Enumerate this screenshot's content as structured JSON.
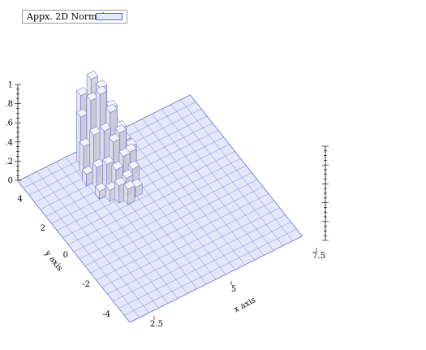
{
  "legend": {
    "label": "Appx. 2D Normal"
  },
  "chart_data": {
    "type": "histogram3d",
    "title": "",
    "xlabel": "x axis",
    "ylabel": "y axis",
    "zlabel": "",
    "x_ticks": [
      "2.5",
      "5",
      "7.5"
    ],
    "y_ticks": [
      "-4",
      "-2",
      "0",
      "2",
      "4"
    ],
    "z_ticks": [
      "0",
      ".2",
      ".4",
      ".6",
      ".8",
      "1"
    ],
    "grid": true,
    "legend_position": "top-left",
    "colors": {
      "fill": "#e4e8fb",
      "edge": "#5a66c8",
      "bar_top": "#f4f5fb",
      "bar_side": "#c9cad6"
    },
    "bars": [
      {
        "x": 4.7,
        "y": 2.2,
        "z": 0.08
      },
      {
        "x": 5.0,
        "y": 1.8,
        "z": 0.12
      },
      {
        "x": 5.3,
        "y": 1.5,
        "z": 0.18
      },
      {
        "x": 5.6,
        "y": 1.2,
        "z": 0.16
      },
      {
        "x": 4.6,
        "y": 3.2,
        "z": 0.12
      },
      {
        "x": 4.9,
        "y": 2.8,
        "z": 0.22
      },
      {
        "x": 5.2,
        "y": 2.4,
        "z": 0.28
      },
      {
        "x": 5.5,
        "y": 2.1,
        "z": 0.24
      },
      {
        "x": 5.8,
        "y": 1.7,
        "z": 0.18
      },
      {
        "x": 6.1,
        "y": 1.4,
        "z": 0.1
      },
      {
        "x": 4.8,
        "y": 3.8,
        "z": 0.3
      },
      {
        "x": 5.1,
        "y": 3.4,
        "z": 0.45
      },
      {
        "x": 5.4,
        "y": 3.0,
        "z": 0.52
      },
      {
        "x": 5.7,
        "y": 2.7,
        "z": 0.42
      },
      {
        "x": 6.0,
        "y": 2.3,
        "z": 0.3
      },
      {
        "x": 6.3,
        "y": 2.0,
        "z": 0.18
      },
      {
        "x": 5.0,
        "y": 4.4,
        "z": 0.5
      },
      {
        "x": 5.3,
        "y": 4.0,
        "z": 0.7
      },
      {
        "x": 5.6,
        "y": 3.7,
        "z": 0.78
      },
      {
        "x": 5.9,
        "y": 3.3,
        "z": 0.62
      },
      {
        "x": 6.2,
        "y": 3.0,
        "z": 0.42
      },
      {
        "x": 6.5,
        "y": 2.6,
        "z": 0.25
      },
      {
        "x": 5.3,
        "y": 4.9,
        "z": 0.62
      },
      {
        "x": 5.6,
        "y": 4.5,
        "z": 0.82
      },
      {
        "x": 5.9,
        "y": 4.2,
        "z": 0.74
      },
      {
        "x": 6.2,
        "y": 3.8,
        "z": 0.56
      },
      {
        "x": 6.5,
        "y": 3.5,
        "z": 0.36
      },
      {
        "x": 6.8,
        "y": 3.1,
        "z": 0.2
      },
      {
        "x": 5.7,
        "y": 5.2,
        "z": 0.5
      },
      {
        "x": 6.0,
        "y": 4.9,
        "z": 0.58
      },
      {
        "x": 6.3,
        "y": 4.5,
        "z": 0.44
      },
      {
        "x": 6.6,
        "y": 4.2,
        "z": 0.28
      },
      {
        "x": 6.9,
        "y": 3.8,
        "z": 0.15
      },
      {
        "x": 6.4,
        "y": 5.0,
        "z": 0.3
      },
      {
        "x": 6.7,
        "y": 4.7,
        "z": 0.2
      },
      {
        "x": 7.0,
        "y": 4.4,
        "z": 0.1
      }
    ]
  }
}
